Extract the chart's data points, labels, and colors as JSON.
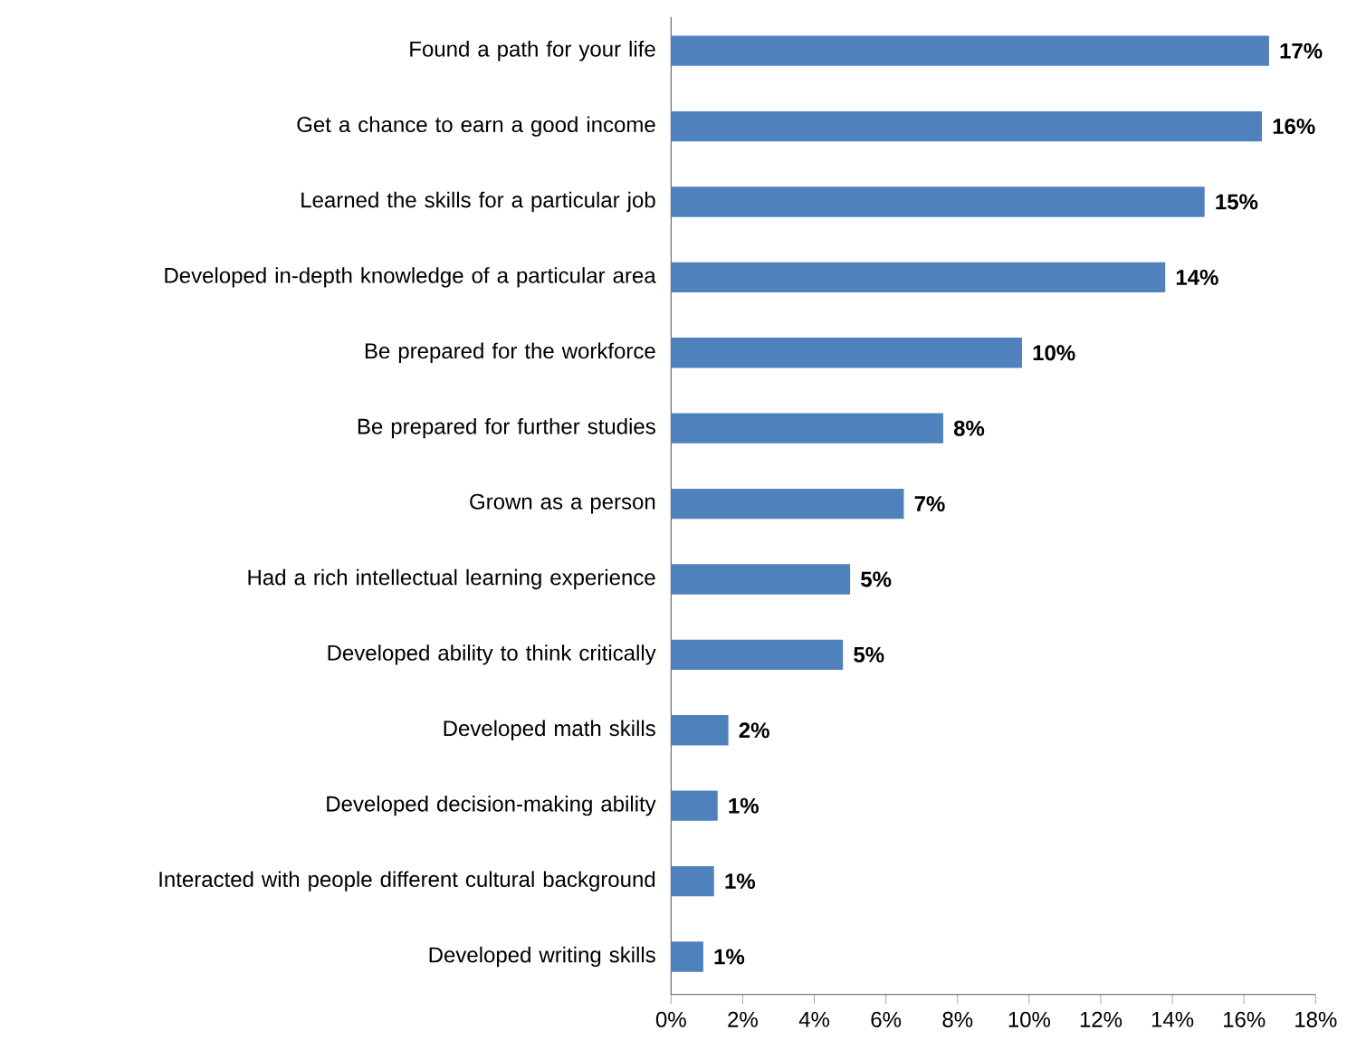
{
  "chart_data": {
    "type": "bar",
    "orientation": "horizontal",
    "color": "#4f81bd",
    "categories": [
      "Found a path for your life",
      "Get a chance to earn a good income",
      "Learned the skills for a particular job",
      "Developed in-depth knowledge of a particular area",
      "Be prepared for the workforce",
      "Be prepared for further studies",
      "Grown as a person",
      "Had a rich intellectual learning experience",
      "Developed ability to think critically",
      "Developed math skills",
      "Developed decision-making ability",
      "Interacted with people different cultural background",
      "Developed writing skills"
    ],
    "values": [
      16.7,
      16.5,
      14.9,
      13.8,
      9.8,
      7.6,
      6.5,
      5.0,
      4.8,
      1.6,
      1.3,
      1.2,
      0.9
    ],
    "value_labels": [
      "17%",
      "16%",
      "15%",
      "14%",
      "10%",
      "8%",
      "7%",
      "5%",
      "5%",
      "2%",
      "1%",
      "1%",
      "1%"
    ],
    "xlim": [
      0,
      18
    ],
    "xticks": [
      {
        "value": 0,
        "label": "0%"
      },
      {
        "value": 2,
        "label": "2%"
      },
      {
        "value": 4,
        "label": "4%"
      },
      {
        "value": 6,
        "label": "6%"
      },
      {
        "value": 8,
        "label": "8%"
      },
      {
        "value": 10,
        "label": "10%"
      },
      {
        "value": 12,
        "label": "12%"
      },
      {
        "value": 14,
        "label": "14%"
      },
      {
        "value": 16,
        "label": "16%"
      },
      {
        "value": 18,
        "label": "18%"
      }
    ],
    "grid": false
  }
}
